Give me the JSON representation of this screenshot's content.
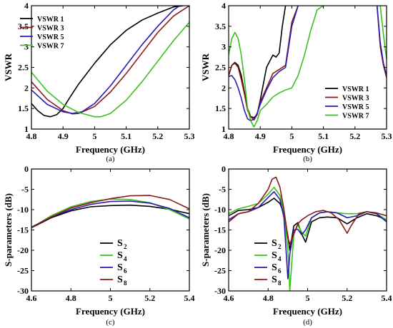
{
  "chart_data": [
    {
      "panel_id": "a",
      "type": "line",
      "caption": "(a)",
      "xlabel": "Frequency (GHz)",
      "ylabel": "VSWR",
      "xlim": [
        4.8,
        5.3
      ],
      "ylim": [
        1,
        4
      ],
      "xticks": [
        4.8,
        4.9,
        5,
        5.1,
        5.2,
        5.3
      ],
      "xtick_labels": [
        "4.8",
        "4.9",
        "5",
        "5.1",
        "5.2",
        "5.3"
      ],
      "yticks": [
        1,
        1.5,
        2,
        2.5,
        3,
        3.5,
        4
      ],
      "ytick_labels": [
        "1",
        "1.5",
        "2",
        "2.5",
        "3",
        "3.5",
        "4"
      ],
      "legend": {
        "placement": "top-left",
        "style": "text"
      },
      "series": [
        {
          "name": "VSWR 1",
          "color": "#000000",
          "x": [
            4.8,
            4.82,
            4.84,
            4.86,
            4.88,
            4.9,
            4.92,
            4.95,
            5.0,
            5.05,
            5.1,
            5.15,
            5.2,
            5.25,
            5.28
          ],
          "y": [
            1.62,
            1.45,
            1.33,
            1.3,
            1.35,
            1.5,
            1.75,
            2.1,
            2.6,
            3.05,
            3.4,
            3.65,
            3.82,
            3.97,
            4.0
          ]
        },
        {
          "name": "VSWR 3",
          "color": "#8b1a1a",
          "x": [
            4.8,
            4.85,
            4.9,
            4.93,
            4.95,
            5.0,
            5.05,
            5.1,
            5.15,
            5.2,
            5.25,
            5.3
          ],
          "y": [
            2.15,
            1.72,
            1.45,
            1.37,
            1.38,
            1.55,
            1.9,
            2.35,
            2.85,
            3.35,
            3.75,
            4.0
          ]
        },
        {
          "name": "VSWR 5",
          "color": "#2a1ab0",
          "x": [
            4.8,
            4.85,
            4.9,
            4.93,
            4.96,
            5.0,
            5.05,
            5.1,
            5.15,
            5.2,
            5.25,
            5.27
          ],
          "y": [
            1.95,
            1.6,
            1.42,
            1.38,
            1.42,
            1.62,
            2.05,
            2.55,
            3.05,
            3.5,
            3.9,
            4.0
          ]
        },
        {
          "name": "VSWR 7",
          "color": "#39c21b",
          "x": [
            4.8,
            4.85,
            4.9,
            4.95,
            5.0,
            5.02,
            5.05,
            5.1,
            5.15,
            5.2,
            5.25,
            5.3
          ],
          "y": [
            2.38,
            1.92,
            1.6,
            1.4,
            1.3,
            1.3,
            1.38,
            1.7,
            2.15,
            2.65,
            3.15,
            3.6
          ]
        }
      ]
    },
    {
      "panel_id": "b",
      "type": "line",
      "caption": "(b)",
      "xlabel": "Frequency (GHz)",
      "ylabel": "VSWR",
      "xlim": [
        4.8,
        5.3
      ],
      "ylim": [
        1,
        4
      ],
      "xticks": [
        4.8,
        4.9,
        5,
        5.1,
        5.2,
        5.3
      ],
      "xtick_labels": [
        "4.8",
        "4.9",
        "5",
        "5.1",
        "5.2",
        "5.3"
      ],
      "yticks": [
        1,
        1.5,
        2,
        2.5,
        3,
        3.5,
        4
      ],
      "ytick_labels": [
        "1",
        "1.5",
        "2",
        "2.5",
        "3",
        "3.5",
        "4"
      ],
      "legend": {
        "placement": "bottom-center",
        "style": "line"
      },
      "series": [
        {
          "name": "VSWR 1",
          "color": "#000000",
          "x": [
            4.8,
            4.81,
            4.82,
            4.83,
            4.84,
            4.85,
            4.86,
            4.87,
            4.88,
            4.89,
            4.9,
            4.92,
            4.94,
            4.95,
            4.96,
            4.97,
            4.98
          ],
          "y": [
            2.3,
            2.55,
            2.62,
            2.55,
            2.3,
            1.9,
            1.5,
            1.3,
            1.28,
            1.35,
            1.7,
            2.5,
            2.8,
            2.75,
            2.85,
            3.5,
            4.0
          ]
        },
        {
          "name": "VSWR 3",
          "color": "#8b1a1a",
          "x": [
            4.8,
            4.81,
            4.82,
            4.83,
            4.84,
            4.85,
            4.86,
            4.87,
            4.88,
            4.89,
            4.9,
            4.92,
            4.94,
            4.96,
            4.98,
            5.0,
            5.02
          ],
          "y": [
            2.3,
            2.55,
            2.6,
            2.5,
            2.2,
            1.85,
            1.45,
            1.3,
            1.22,
            1.35,
            1.65,
            2.0,
            2.35,
            2.45,
            2.55,
            3.6,
            4.0
          ],
          "x2": [
            5.27,
            5.28,
            5.29,
            5.3
          ],
          "y2": [
            4.0,
            3.0,
            2.55,
            2.25
          ]
        },
        {
          "name": "VSWR 5",
          "color": "#2a1ab0",
          "x": [
            4.8,
            4.81,
            4.82,
            4.83,
            4.84,
            4.85,
            4.86,
            4.87,
            4.88,
            4.89,
            4.9,
            4.92,
            4.94,
            4.96,
            4.98,
            5.0,
            5.02
          ],
          "y": [
            2.28,
            2.3,
            2.2,
            2.0,
            1.75,
            1.45,
            1.25,
            1.2,
            1.25,
            1.38,
            1.6,
            1.95,
            2.25,
            2.4,
            2.5,
            3.5,
            4.0
          ],
          "x2": [
            5.27,
            5.28,
            5.29,
            5.3
          ],
          "y2": [
            4.0,
            3.1,
            2.6,
            2.3
          ]
        },
        {
          "name": "VSWR 7",
          "color": "#39c21b",
          "x": [
            4.8,
            4.81,
            4.82,
            4.83,
            4.84,
            4.85,
            4.86,
            4.87,
            4.88,
            4.89,
            4.9,
            4.92,
            4.94,
            4.96,
            4.98,
            5.0,
            5.02,
            5.04,
            5.06,
            5.08,
            5.1
          ],
          "y": [
            2.8,
            3.2,
            3.35,
            3.2,
            2.8,
            2.2,
            1.5,
            1.2,
            1.05,
            1.2,
            1.45,
            1.6,
            1.78,
            1.88,
            1.95,
            2.0,
            2.3,
            2.8,
            3.4,
            3.9,
            4.0
          ],
          "x2": [
            5.28,
            5.29,
            5.3
          ],
          "y2": [
            4.0,
            3.3,
            2.7
          ]
        }
      ]
    },
    {
      "panel_id": "c",
      "type": "line",
      "caption": "(c)",
      "xlabel": "Frequency (GHz)",
      "ylabel": "S-parameters (dB)",
      "xlim": [
        4.6,
        5.4
      ],
      "ylim": [
        -30,
        0
      ],
      "xticks": [
        4.6,
        4.8,
        5,
        5.2,
        5.4
      ],
      "xtick_labels": [
        "4.6",
        "4.8",
        "5",
        "5.2",
        "5.4"
      ],
      "yticks": [
        0,
        -5,
        -10,
        -15,
        -20,
        -25,
        -30
      ],
      "ytick_labels": [
        "0",
        "-5",
        "-10",
        "-15",
        "-20",
        "-25",
        "-30"
      ],
      "legend": {
        "placement": "bottom-center",
        "style": "line"
      },
      "series": [
        {
          "name": "S",
          "subscript": "2",
          "color": "#000000",
          "x": [
            4.6,
            4.7,
            4.8,
            4.9,
            5.0,
            5.1,
            5.2,
            5.3,
            5.4
          ],
          "y": [
            -14.5,
            -12.0,
            -10.3,
            -9.3,
            -9.0,
            -8.9,
            -9.2,
            -9.9,
            -11.0
          ]
        },
        {
          "name": "S",
          "subscript": "4",
          "color": "#39c21b",
          "x": [
            4.6,
            4.7,
            4.8,
            4.9,
            5.0,
            5.1,
            5.2,
            5.3,
            5.4
          ],
          "y": [
            -14.5,
            -11.5,
            -9.3,
            -8.0,
            -7.4,
            -7.5,
            -8.3,
            -10.0,
            -12.3
          ]
        },
        {
          "name": "S",
          "subscript": "6",
          "color": "#2a1ab0",
          "x": [
            4.6,
            4.7,
            4.8,
            4.9,
            5.0,
            5.1,
            5.2,
            5.3,
            5.4
          ],
          "y": [
            -14.3,
            -11.8,
            -10.0,
            -8.7,
            -8.0,
            -7.9,
            -8.4,
            -9.7,
            -12.0
          ]
        },
        {
          "name": "S",
          "subscript": "8",
          "color": "#8b1a1a",
          "x": [
            4.6,
            4.7,
            4.8,
            4.9,
            5.0,
            5.1,
            5.2,
            5.3,
            5.4
          ],
          "y": [
            -14.4,
            -11.8,
            -9.6,
            -8.3,
            -7.3,
            -6.6,
            -6.5,
            -7.5,
            -9.8
          ]
        }
      ]
    },
    {
      "panel_id": "d",
      "type": "line",
      "caption": "(d)",
      "xlabel": "Frequency (GHz)",
      "ylabel": "S-parameters (dB)",
      "xlim": [
        4.6,
        5.4
      ],
      "ylim": [
        -30,
        0
      ],
      "xticks": [
        4.6,
        4.8,
        5,
        5.2,
        5.4
      ],
      "xtick_labels": [
        "4.6",
        "4.8",
        "5",
        "5.2",
        "5.4"
      ],
      "yticks": [
        0,
        -5,
        -10,
        -15,
        -20,
        -25,
        -30
      ],
      "ytick_labels": [
        "0",
        "-5",
        "-10",
        "-15",
        "-20",
        "-25",
        "-30"
      ],
      "legend": {
        "placement": "bottom-left",
        "style": "line"
      },
      "series": [
        {
          "name": "S",
          "subscript": "2",
          "color": "#000000",
          "x": [
            4.6,
            4.65,
            4.7,
            4.75,
            4.8,
            4.83,
            4.86,
            4.88,
            4.9,
            4.91,
            4.93,
            4.95,
            4.97,
            4.99,
            5.02,
            5.06,
            5.1,
            5.15,
            5.2,
            5.25,
            5.3,
            5.35,
            5.4
          ],
          "y": [
            -11.5,
            -10.2,
            -10.0,
            -9.5,
            -8.2,
            -7.2,
            -8.5,
            -11.0,
            -16.5,
            -20.0,
            -14.0,
            -13.2,
            -16.0,
            -18.0,
            -13.0,
            -12.0,
            -11.8,
            -12.0,
            -13.5,
            -12.0,
            -11.0,
            -11.5,
            -12.5
          ]
        },
        {
          "name": "S",
          "subscript": "4",
          "color": "#39c21b",
          "x": [
            4.6,
            4.65,
            4.7,
            4.75,
            4.8,
            4.83,
            4.86,
            4.88,
            4.9,
            4.91,
            4.93,
            4.95,
            4.97,
            4.99,
            5.02,
            5.06,
            5.1,
            5.15,
            5.2,
            5.25,
            5.3,
            5.35,
            5.4
          ],
          "y": [
            -11.0,
            -9.8,
            -9.2,
            -8.5,
            -6.2,
            -4.5,
            -6.5,
            -10.5,
            -20.0,
            -30.0,
            -16.0,
            -13.8,
            -15.5,
            -16.5,
            -12.0,
            -10.8,
            -10.5,
            -10.8,
            -11.0,
            -11.0,
            -10.5,
            -11.0,
            -12.5
          ]
        },
        {
          "name": "S",
          "subscript": "6",
          "color": "#2a1ab0",
          "x": [
            4.6,
            4.65,
            4.7,
            4.75,
            4.8,
            4.83,
            4.86,
            4.88,
            4.9,
            4.91,
            4.93,
            4.95,
            4.97,
            4.99,
            5.02,
            5.06,
            5.1,
            5.15,
            5.2,
            5.25,
            5.3,
            5.35,
            5.4
          ],
          "y": [
            -12.5,
            -11.0,
            -10.5,
            -9.5,
            -7.0,
            -5.6,
            -7.5,
            -12.0,
            -27.0,
            -21.0,
            -15.0,
            -14.8,
            -16.2,
            -15.0,
            -12.0,
            -10.8,
            -10.5,
            -10.8,
            -12.0,
            -11.5,
            -10.5,
            -11.0,
            -13.0
          ]
        },
        {
          "name": "S",
          "subscript": "8",
          "color": "#8b1a1a",
          "x": [
            4.6,
            4.65,
            4.7,
            4.75,
            4.8,
            4.82,
            4.84,
            4.86,
            4.88,
            4.9,
            4.91,
            4.93,
            4.95,
            4.97,
            5.0,
            5.04,
            5.08,
            5.12,
            5.16,
            5.2,
            5.22,
            5.26,
            5.3,
            5.35,
            5.4
          ],
          "y": [
            -13.0,
            -11.0,
            -10.5,
            -8.5,
            -5.0,
            -2.5,
            -2.0,
            -4.5,
            -10.0,
            -17.0,
            -18.5,
            -16.0,
            -13.5,
            -12.5,
            -11.5,
            -10.5,
            -10.2,
            -10.8,
            -12.5,
            -15.8,
            -14.0,
            -11.0,
            -10.5,
            -10.8,
            -11.5
          ]
        }
      ]
    }
  ]
}
